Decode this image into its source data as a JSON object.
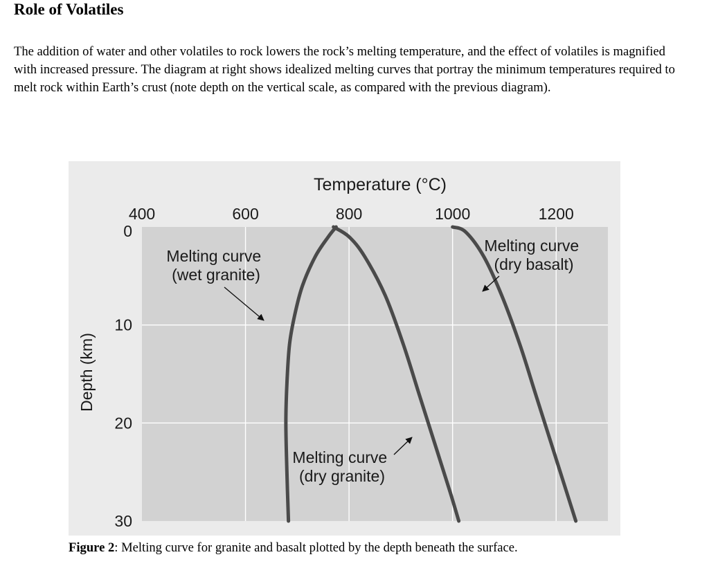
{
  "page": {
    "title": "Role of Volatiles",
    "paragraph": "The addition of water and other volatiles to rock lowers the rock’s melting temperature, and the effect of volatiles is magnified with increased pressure. The diagram at right shows idealized melting curves that portray the minimum temperatures required to melt rock within Earth’s crust (note depth on the vertical scale, as compared with the previous diagram)."
  },
  "caption": {
    "label": "Figure 2",
    "text": ": Melting curve for granite and basalt plotted by the depth beneath the surface."
  },
  "chart_data": {
    "type": "line",
    "title": "",
    "xlabel": "Temperature (°C)",
    "ylabel": "Depth (km)",
    "xlim": [
      400,
      1300
    ],
    "ylim": [
      0,
      30
    ],
    "y_inverted": true,
    "x_axis_position": "top",
    "grid": true,
    "x_ticks": [
      400,
      600,
      800,
      1000,
      1200
    ],
    "y_ticks": [
      0,
      10,
      20,
      30
    ],
    "series": [
      {
        "name": "wet granite",
        "label_lines": [
          "Melting curve",
          "(wet granite)"
        ],
        "points": [
          [
            775,
            0
          ],
          [
            760,
            1
          ],
          [
            735,
            3
          ],
          [
            710,
            6
          ],
          [
            695,
            9
          ],
          [
            685,
            12
          ],
          [
            680,
            16
          ],
          [
            678,
            20
          ],
          [
            680,
            25
          ],
          [
            683,
            30
          ]
        ]
      },
      {
        "name": "dry granite",
        "label_lines": [
          "Melting curve",
          "(dry granite)"
        ],
        "points": [
          [
            770,
            0
          ],
          [
            800,
            1
          ],
          [
            830,
            3
          ],
          [
            870,
            7
          ],
          [
            905,
            12
          ],
          [
            935,
            17
          ],
          [
            965,
            22
          ],
          [
            995,
            27
          ],
          [
            1012,
            30
          ]
        ]
      },
      {
        "name": "dry basalt",
        "label_lines": [
          "Melting curve",
          "(dry basalt)"
        ],
        "points": [
          [
            1000,
            0
          ],
          [
            1025,
            0.5
          ],
          [
            1060,
            3
          ],
          [
            1095,
            7
          ],
          [
            1130,
            12
          ],
          [
            1160,
            17
          ],
          [
            1190,
            22
          ],
          [
            1220,
            27
          ],
          [
            1238,
            30
          ]
        ]
      }
    ]
  }
}
